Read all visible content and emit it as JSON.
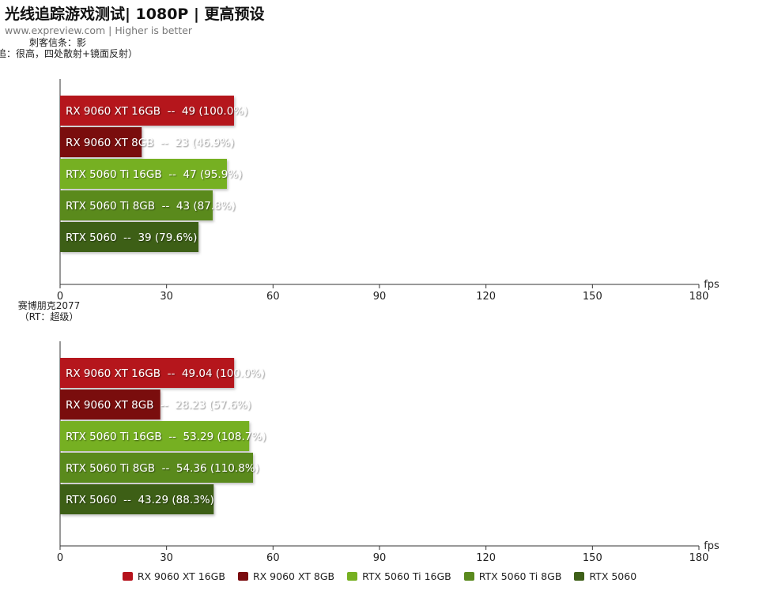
{
  "header": {
    "title": "光线追踪游戏测试| 1080P | 更高预设",
    "subtitle": "www.expreview.com | Higher is better"
  },
  "legend": [
    {
      "label": "RX 9060 XT 16GB",
      "color": "#b5121b"
    },
    {
      "label": "RX 9060 XT 8GB",
      "color": "#7a0b0f"
    },
    {
      "label": "RTX 5060 Ti 16GB",
      "color": "#76b021"
    },
    {
      "label": "RTX 5060 Ti 8GB",
      "color": "#5a8a1e"
    },
    {
      "label": "RTX 5060",
      "color": "#3e5f18"
    }
  ],
  "chart_data": [
    {
      "type": "bar",
      "orientation": "horizontal",
      "game_label": [
        "刺客信条：影",
        "（光追：很高，四处散射+镜面反射）"
      ],
      "categories": [
        "RX 9060 XT 16GB",
        "RX 9060 XT 8GB",
        "RTX 5060 Ti 16GB",
        "RTX 5060 Ti 8GB",
        "RTX 5060"
      ],
      "values": [
        49,
        23,
        47,
        43,
        39
      ],
      "bar_labels": [
        "RX 9060 XT 16GB  --  49 (100.0%)",
        "RX 9060 XT 8GB  --  23 (46.9%)",
        "RTX 5060 Ti 16GB  --  47 (95.9%)",
        "RTX 5060 Ti 8GB  --  43 (87.8%)",
        "RTX 5060  --  39 (79.6%)"
      ],
      "xlabel": "fps",
      "xlim": [
        0,
        180
      ],
      "xticks": [
        0,
        30,
        60,
        90,
        120,
        150,
        180
      ]
    },
    {
      "type": "bar",
      "orientation": "horizontal",
      "game_label": [
        "赛博朋克2077",
        "（RT：超级）"
      ],
      "categories": [
        "RX 9060 XT 16GB",
        "RX 9060 XT 8GB",
        "RTX 5060 Ti 16GB",
        "RTX 5060 Ti 8GB",
        "RTX 5060"
      ],
      "values": [
        49.04,
        28.23,
        53.29,
        54.36,
        43.29
      ],
      "bar_labels": [
        "RX 9060 XT 16GB  --  49.04 (100.0%)",
        "RX 9060 XT 8GB  --  28.23 (57.6%)",
        "RTX 5060 Ti 16GB  --  53.29 (108.7%)",
        "RTX 5060 Ti 8GB  --  54.36 (110.8%)",
        "RTX 5060  --  43.29 (88.3%)"
      ],
      "xlabel": "fps",
      "xlim": [
        0,
        180
      ],
      "xticks": [
        0,
        30,
        60,
        90,
        120,
        150,
        180
      ]
    }
  ]
}
